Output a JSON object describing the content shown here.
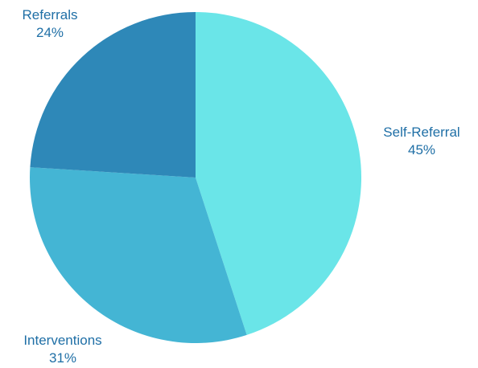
{
  "chart_data": {
    "type": "pie",
    "title": "",
    "slices": [
      {
        "name": "Self-Referral",
        "value": 45,
        "label": "45%",
        "color": "#6ae5e8"
      },
      {
        "name": "Interventions",
        "value": 31,
        "label": "31%",
        "color": "#44b5d4"
      },
      {
        "name": "Referrals",
        "value": 24,
        "label": "24%",
        "color": "#2e88b8"
      }
    ],
    "start_angle_deg": 0,
    "direction": "clockwise",
    "label_color": "#1f6fa6",
    "legend": "none"
  }
}
